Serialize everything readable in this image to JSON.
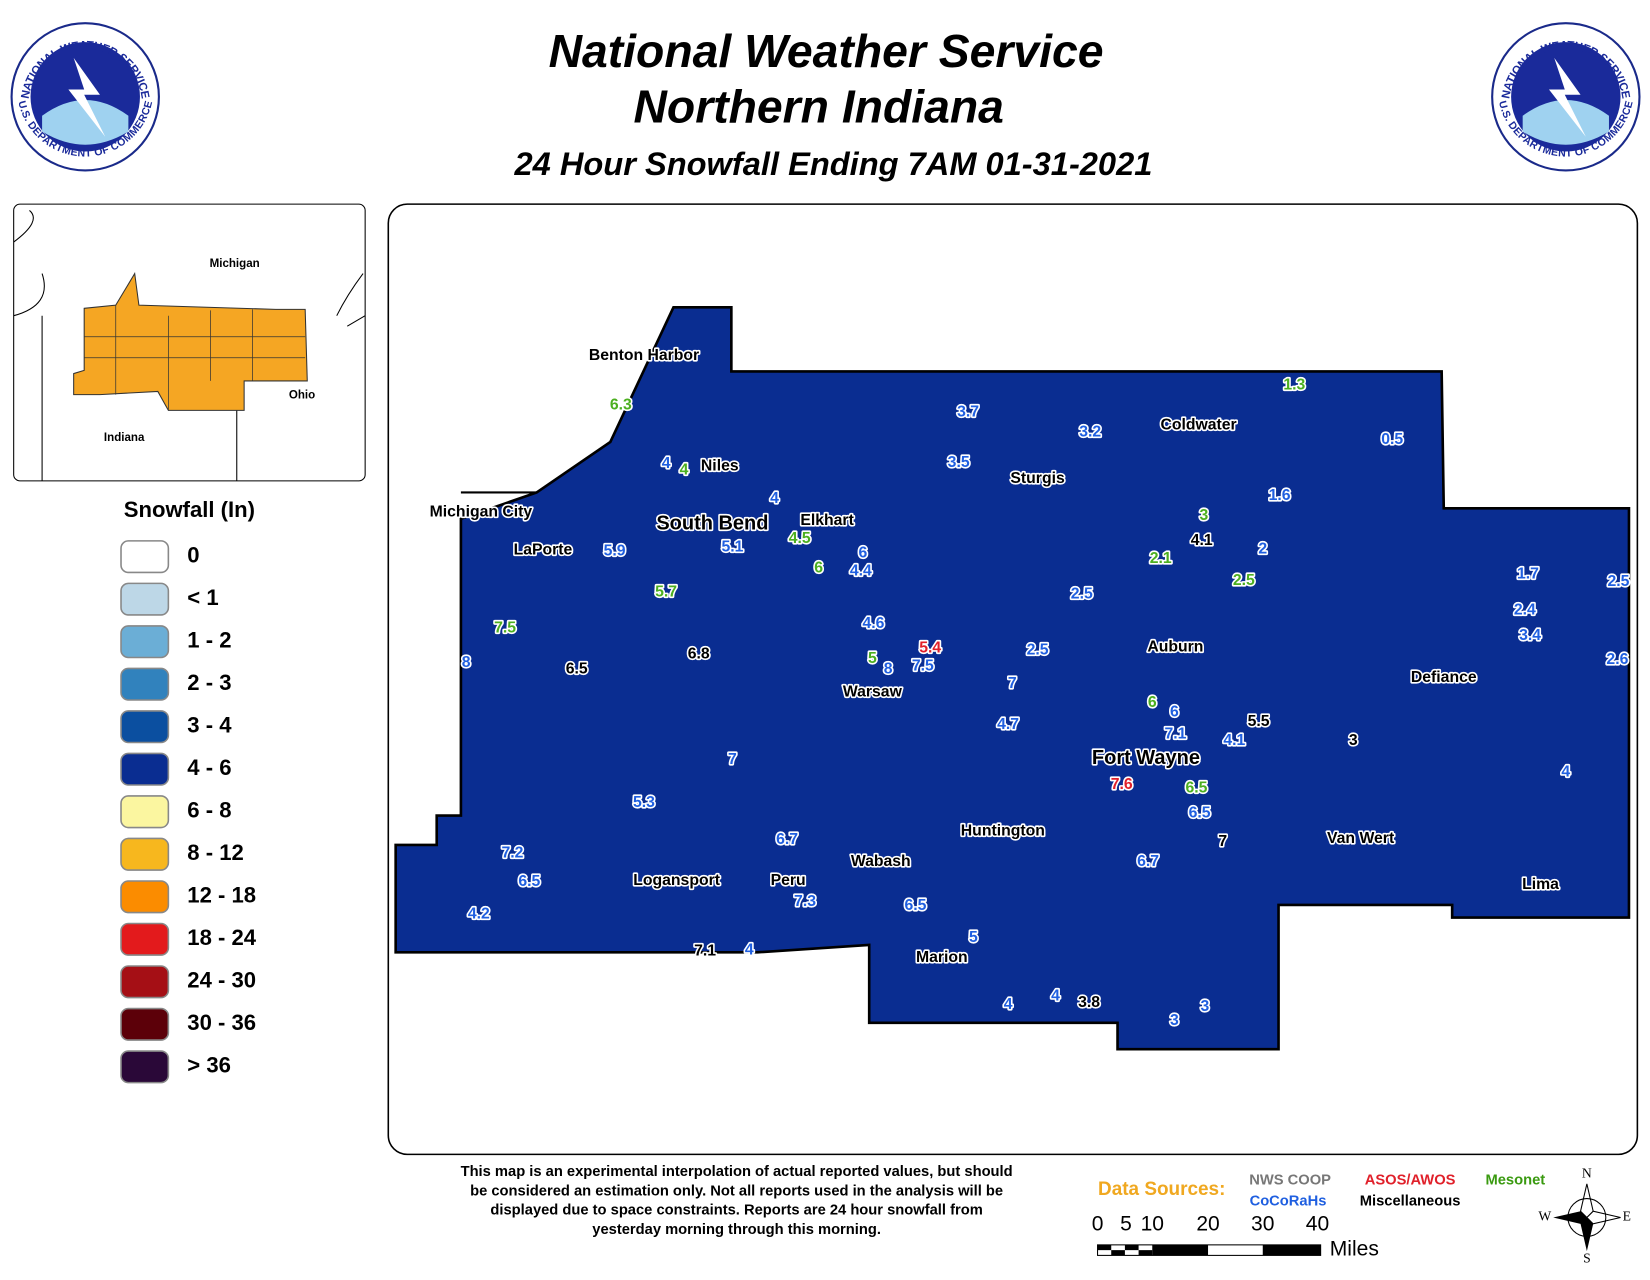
{
  "header": {
    "title": "National Weather Service",
    "subtitle": "Northern Indiana",
    "caption": "24 Hour Snowfall Ending 7AM 01-31-2021",
    "logo_top": "NATIONAL WEATHER SERVICE",
    "logo_bottom": "U.S. DEPARTMENT OF COMMERCE"
  },
  "inset": {
    "labels": [
      "Michigan",
      "Ohio",
      "Indiana"
    ],
    "region_color": "#f5a623"
  },
  "legend": {
    "title": "Snowfall (In)",
    "items": [
      {
        "label": "0",
        "color": "#ffffff"
      },
      {
        "label": "< 1",
        "color": "#bdd7e7"
      },
      {
        "label": "1 - 2",
        "color": "#6baed6"
      },
      {
        "label": "2 - 3",
        "color": "#3182bd"
      },
      {
        "label": "3 - 4",
        "color": "#0b4fa0"
      },
      {
        "label": "4 - 6",
        "color": "#0a2d91"
      },
      {
        "label": "6 - 8",
        "color": "#fbf6a0"
      },
      {
        "label": "8 - 12",
        "color": "#f7b71e"
      },
      {
        "label": "12 - 18",
        "color": "#fb8c00"
      },
      {
        "label": "18 - 24",
        "color": "#e31a1c"
      },
      {
        "label": "24 - 30",
        "color": "#a50f15"
      },
      {
        "label": "30 - 36",
        "color": "#5c0009"
      },
      {
        "label": "> 36",
        "color": "#2a0838"
      }
    ]
  },
  "map": {
    "cities": [
      "Benton Harbor",
      "Niles",
      "Michigan City",
      "LaPorte",
      "South Bend",
      "Elkhart",
      "Sturgis",
      "Coldwater",
      "Warsaw",
      "Auburn",
      "Fort Wayne",
      "Defiance",
      "Huntington",
      "Wabash",
      "Logansport",
      "Peru",
      "Van Wert",
      "Marion",
      "Lima"
    ],
    "reports": [
      {
        "value": 6.3,
        "color": "#4caf20"
      },
      {
        "value": 4,
        "color": "#1f5fe0"
      },
      {
        "value": 4,
        "color": "#4caf20"
      },
      {
        "value": 3.7,
        "color": "#1f5fe0"
      },
      {
        "value": 3.2,
        "color": "#1f5fe0"
      },
      {
        "value": 3.5,
        "color": "#1f5fe0"
      },
      {
        "value": 1.3,
        "color": "#4caf20"
      },
      {
        "value": 0.5,
        "color": "#1f5fe0"
      },
      {
        "value": 1.6,
        "color": "#1f5fe0"
      },
      {
        "value": 4,
        "color": "#1f5fe0"
      },
      {
        "value": 5.9,
        "color": "#1f5fe0"
      },
      {
        "value": 5.1,
        "color": "#1f5fe0"
      },
      {
        "value": 4.5,
        "color": "#4caf20"
      },
      {
        "value": 6,
        "color": "#1f5fe0"
      },
      {
        "value": 4.4,
        "color": "#1f5fe0"
      },
      {
        "value": 6,
        "color": "#4caf20"
      },
      {
        "value": 3,
        "color": "#4caf20"
      },
      {
        "value": 4.1,
        "color": "#000000"
      },
      {
        "value": 2,
        "color": "#1f5fe0"
      },
      {
        "value": 2.1,
        "color": "#4caf20"
      },
      {
        "value": 2.5,
        "color": "#4caf20"
      },
      {
        "value": 2.5,
        "color": "#1f5fe0"
      },
      {
        "value": 5.7,
        "color": "#4caf20"
      },
      {
        "value": 1.7,
        "color": "#1f5fe0"
      },
      {
        "value": 2.5,
        "color": "#1f5fe0"
      },
      {
        "value": 2.4,
        "color": "#1f5fe0"
      },
      {
        "value": 3.4,
        "color": "#1f5fe0"
      },
      {
        "value": 2.6,
        "color": "#1f5fe0"
      },
      {
        "value": 7.5,
        "color": "#4caf20"
      },
      {
        "value": 8,
        "color": "#1f5fe0"
      },
      {
        "value": 6.5,
        "color": "#000000"
      },
      {
        "value": 6.8,
        "color": "#000000"
      },
      {
        "value": 4.6,
        "color": "#1f5fe0"
      },
      {
        "value": 5.4,
        "color": "#e0202a"
      },
      {
        "value": 5,
        "color": "#4caf20"
      },
      {
        "value": 8,
        "color": "#1f5fe0"
      },
      {
        "value": 7.5,
        "color": "#1f5fe0"
      },
      {
        "value": 2.5,
        "color": "#1f5fe0"
      },
      {
        "value": 7,
        "color": "#1f5fe0"
      },
      {
        "value": 6,
        "color": "#4caf20"
      },
      {
        "value": 6,
        "color": "#1f5fe0"
      },
      {
        "value": 7.1,
        "color": "#1f5fe0"
      },
      {
        "value": 4.1,
        "color": "#1f5fe0"
      },
      {
        "value": 5.5,
        "color": "#000000"
      },
      {
        "value": 4.7,
        "color": "#1f5fe0"
      },
      {
        "value": 3,
        "color": "#000000"
      },
      {
        "value": 4,
        "color": "#1f5fe0"
      },
      {
        "value": 7,
        "color": "#1f5fe0"
      },
      {
        "value": 7.6,
        "color": "#e0202a"
      },
      {
        "value": 6.5,
        "color": "#4caf20"
      },
      {
        "value": 6.5,
        "color": "#1f5fe0"
      },
      {
        "value": 5.3,
        "color": "#1f5fe0"
      },
      {
        "value": 6.7,
        "color": "#1f5fe0"
      },
      {
        "value": 7,
        "color": "#000000"
      },
      {
        "value": 6.7,
        "color": "#1f5fe0"
      },
      {
        "value": 7.2,
        "color": "#1f5fe0"
      },
      {
        "value": 6.5,
        "color": "#1f5fe0"
      },
      {
        "value": 7.3,
        "color": "#1f5fe0"
      },
      {
        "value": 6.5,
        "color": "#1f5fe0"
      },
      {
        "value": 4.2,
        "color": "#1f5fe0"
      },
      {
        "value": 5,
        "color": "#1f5fe0"
      },
      {
        "value": 7.1,
        "color": "#000000"
      },
      {
        "value": 4,
        "color": "#1f5fe0"
      },
      {
        "value": 4,
        "color": "#1f5fe0"
      },
      {
        "value": 4,
        "color": "#1f5fe0"
      },
      {
        "value": 3.8,
        "color": "#000000"
      },
      {
        "value": 3,
        "color": "#1f5fe0"
      },
      {
        "value": 3,
        "color": "#1f5fe0"
      }
    ]
  },
  "footer": {
    "disclaimer": [
      "This map is an experimental interpolation of actual reported values, but should",
      "be considered an estimation only. Not all reports used in the analysis will be",
      "displayed due to space constraints. Reports are 24 hour snowfall from",
      "yesterday morning through this morning."
    ],
    "sources_title": "Data Sources:",
    "sources": [
      {
        "label": "NWS COOP",
        "color": "#777777"
      },
      {
        "label": "ASOS/AWOS",
        "color": "#e0202a"
      },
      {
        "label": "Mesonet",
        "color": "#3a9a10"
      },
      {
        "label": "CoCoRaHs",
        "color": "#1f5fe0"
      },
      {
        "label": "Miscellaneous",
        "color": "#000000"
      }
    ],
    "scale_labels": [
      "0",
      "5",
      "10",
      "20",
      "30",
      "40"
    ],
    "scale_unit": "Miles",
    "compass": [
      "N",
      "E",
      "S",
      "W"
    ]
  }
}
